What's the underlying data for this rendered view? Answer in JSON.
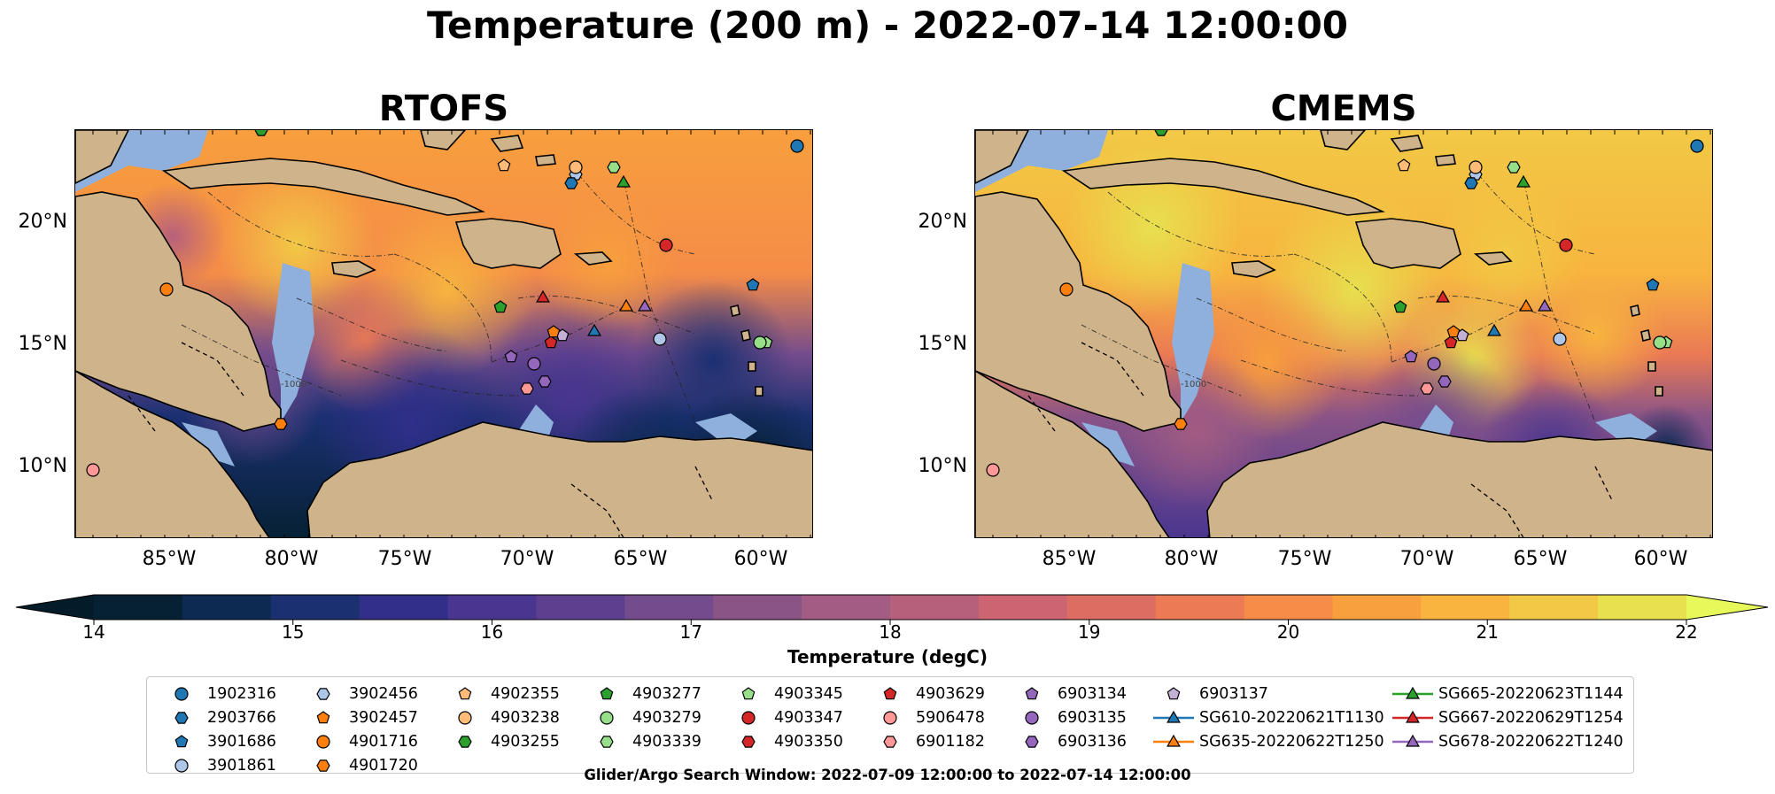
{
  "title": "Temperature (200 m) - 2022-07-14 12:00:00",
  "panels": [
    {
      "title": "RTOFS",
      "scheme": "rtofs"
    },
    {
      "title": "CMEMS",
      "scheme": "cmems"
    }
  ],
  "axes": {
    "lat_labels": [
      "20°N",
      "15°N",
      "10°N"
    ],
    "lon_labels": [
      "85°W",
      "80°W",
      "75°W",
      "70°W",
      "65°W",
      "60°W"
    ]
  },
  "map_annotations": {
    "rtofs_isobath": "-1000",
    "cmems_isobath": "-1000"
  },
  "colorbar": {
    "label": "Temperature (degC)",
    "ticks": [
      "14",
      "15",
      "16",
      "17",
      "18",
      "19",
      "20",
      "21",
      "22"
    ],
    "colors": [
      "#062134",
      "#0c2a52",
      "#1b3071",
      "#312f8a",
      "#4a3690",
      "#5e3f8f",
      "#744c8d",
      "#8a5487",
      "#a35c83",
      "#b7607c",
      "#cc6571",
      "#dd6d62",
      "#eb7a55",
      "#f58c48",
      "#f89f3e",
      "#f8b43f",
      "#f2c946",
      "#e8e04f"
    ],
    "under_color": "#041c29",
    "over_color": "#e6f85a"
  },
  "legend": {
    "columns": [
      [
        {
          "label": "1902316",
          "marker": "circle",
          "color": "#1f77b4"
        },
        {
          "label": "2903766",
          "marker": "hexagon",
          "color": "#1f77b4"
        },
        {
          "label": "3901686",
          "marker": "pentagon",
          "color": "#1f77b4"
        },
        {
          "label": "3901861",
          "marker": "circle",
          "color": "#aec7e8"
        }
      ],
      [
        {
          "label": "3902456",
          "marker": "hexagon",
          "color": "#aec7e8"
        },
        {
          "label": "3902457",
          "marker": "pentagon",
          "color": "#ff7f0e"
        },
        {
          "label": "4901716",
          "marker": "circle",
          "color": "#ff7f0e"
        },
        {
          "label": "4901720",
          "marker": "hexagon",
          "color": "#ff7f0e"
        }
      ],
      [
        {
          "label": "4902355",
          "marker": "pentagon",
          "color": "#ffbb78"
        },
        {
          "label": "4903238",
          "marker": "circle",
          "color": "#ffbb78"
        },
        {
          "label": "4903255",
          "marker": "hexagon",
          "color": "#2ca02c"
        }
      ],
      [
        {
          "label": "4903277",
          "marker": "pentagon",
          "color": "#2ca02c"
        },
        {
          "label": "4903279",
          "marker": "circle",
          "color": "#98df8a"
        },
        {
          "label": "4903339",
          "marker": "hexagon",
          "color": "#98df8a"
        }
      ],
      [
        {
          "label": "4903345",
          "marker": "pentagon",
          "color": "#98df8a"
        },
        {
          "label": "4903347",
          "marker": "circle",
          "color": "#d62728"
        },
        {
          "label": "4903350",
          "marker": "hexagon",
          "color": "#d62728"
        }
      ],
      [
        {
          "label": "4903629",
          "marker": "pentagon",
          "color": "#d62728"
        },
        {
          "label": "5906478",
          "marker": "circle",
          "color": "#ff9896"
        },
        {
          "label": "6901182",
          "marker": "hexagon",
          "color": "#ff9896"
        }
      ],
      [
        {
          "label": "6903134",
          "marker": "pentagon",
          "color": "#9467bd"
        },
        {
          "label": "6903135",
          "marker": "circle",
          "color": "#9467bd"
        },
        {
          "label": "6903136",
          "marker": "hexagon",
          "color": "#9467bd"
        }
      ],
      [
        {
          "label": "6903137",
          "marker": "pentagon",
          "color": "#c5b0d5"
        },
        {
          "label": "SG610-20220621T1130",
          "marker": "triangle-line",
          "color": "#1f77b4"
        },
        {
          "label": "SG635-20220622T1250",
          "marker": "triangle-line",
          "color": "#ff7f0e"
        }
      ],
      [
        {
          "label": "SG665-20220623T1144",
          "marker": "triangle-line",
          "color": "#2ca02c"
        },
        {
          "label": "SG667-20220629T1254",
          "marker": "triangle-line",
          "color": "#d62728"
        },
        {
          "label": "SG678-20220622T1240",
          "marker": "triangle-line",
          "color": "#9467bd"
        }
      ]
    ]
  },
  "footnote": "Glider/Argo Search Window: 2022-07-09 12:00:00 to 2022-07-14 12:00:00"
}
